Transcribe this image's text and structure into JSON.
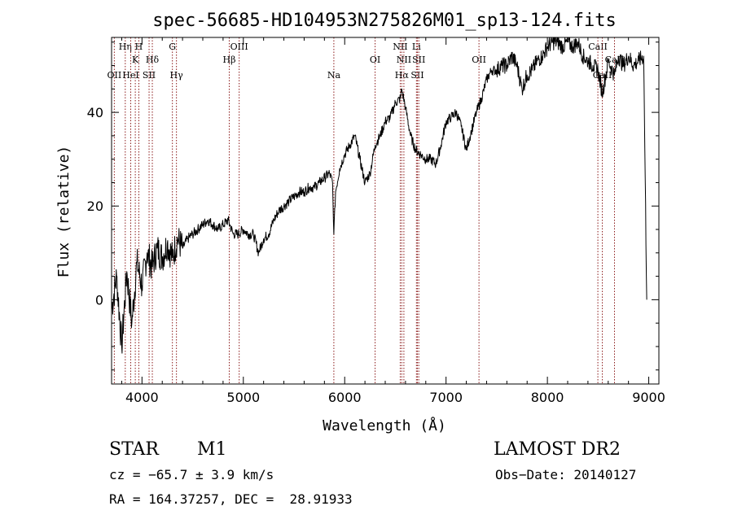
{
  "chart_data": {
    "type": "line",
    "title": "spec-56685-HD104953N275826M01_sp13-124.fits",
    "xlabel": "Wavelength (Å)",
    "ylabel": "Flux (relative)",
    "xlim": [
      3700,
      9100
    ],
    "ylim": [
      -18,
      56
    ],
    "xticks": [
      4000,
      5000,
      6000,
      7000,
      8000,
      9000
    ],
    "yticks": [
      0,
      20,
      40
    ],
    "series": [
      {
        "name": "flux",
        "x": [
          3700,
          3750,
          3800,
          3850,
          3900,
          3950,
          4000,
          4050,
          4100,
          4150,
          4200,
          4250,
          4300,
          4350,
          4400,
          4450,
          4500,
          4550,
          4600,
          4650,
          4700,
          4750,
          4800,
          4850,
          4900,
          4950,
          5000,
          5050,
          5100,
          5150,
          5200,
          5250,
          5300,
          5350,
          5400,
          5450,
          5500,
          5550,
          5600,
          5650,
          5700,
          5750,
          5800,
          5850,
          5880,
          5893,
          5910,
          5950,
          6000,
          6050,
          6100,
          6150,
          6200,
          6250,
          6300,
          6350,
          6400,
          6450,
          6500,
          6550,
          6563,
          6600,
          6650,
          6700,
          6750,
          6800,
          6850,
          6900,
          6950,
          7000,
          7050,
          7100,
          7150,
          7200,
          7250,
          7300,
          7350,
          7400,
          7450,
          7500,
          7550,
          7600,
          7650,
          7700,
          7750,
          7800,
          7850,
          7900,
          7950,
          8000,
          8050,
          8100,
          8150,
          8200,
          8250,
          8300,
          8350,
          8400,
          8450,
          8500,
          8542,
          8600,
          8662,
          8700,
          8750,
          8800,
          8850,
          8900,
          8950,
          8980
        ],
        "y": [
          -2,
          5,
          -10,
          6,
          -5,
          8,
          3,
          10,
          7,
          11,
          9,
          12,
          9,
          13,
          11,
          13,
          14,
          15,
          16,
          17,
          16,
          15,
          16,
          17,
          14,
          14,
          15,
          14,
          14,
          10,
          13,
          14,
          17,
          19,
          20,
          21,
          22,
          23,
          23,
          24,
          24,
          25,
          26,
          27,
          25,
          14,
          23,
          28,
          31,
          33,
          35,
          30,
          25,
          27,
          33,
          35,
          38,
          39,
          42,
          43,
          45,
          41,
          35,
          32,
          31,
          30,
          30,
          29,
          33,
          38,
          39,
          40,
          37,
          32,
          36,
          40,
          43,
          47,
          49,
          49,
          50,
          50,
          52,
          50,
          45,
          48,
          49,
          51,
          52,
          54,
          55,
          55,
          54,
          55,
          54,
          55,
          52,
          51,
          50,
          49,
          44,
          51,
          48,
          52,
          50,
          52,
          50,
          51,
          52,
          0
        ]
      }
    ],
    "lines": [
      {
        "label": "OII",
        "x": 3727,
        "row": 3
      },
      {
        "label": "Hη",
        "x": 3835,
        "row": 1
      },
      {
        "label": "HeI",
        "x": 3889,
        "row": 3
      },
      {
        "label": "K",
        "x": 3934,
        "row": 2
      },
      {
        "label": "H",
        "x": 3969,
        "row": 1
      },
      {
        "label": "SII",
        "x": 4070,
        "row": 3
      },
      {
        "label": "Hδ",
        "x": 4102,
        "row": 2
      },
      {
        "label": "G",
        "x": 4300,
        "row": 1
      },
      {
        "label": "Hγ",
        "x": 4340,
        "row": 3
      },
      {
        "label": "Hβ",
        "x": 4861,
        "row": 2
      },
      {
        "label": "OIII",
        "x": 4959,
        "row": 1
      },
      {
        "label": "Na",
        "x": 5893,
        "row": 3
      },
      {
        "label": "OI",
        "x": 6300,
        "row": 2
      },
      {
        "label": "NII",
        "x": 6548,
        "row": 1
      },
      {
        "label": "Hα",
        "x": 6563,
        "row": 3
      },
      {
        "label": "NII",
        "x": 6584,
        "row": 2
      },
      {
        "label": "Li",
        "x": 6708,
        "row": 1
      },
      {
        "label": "SII",
        "x": 6717,
        "row": 3
      },
      {
        "label": "SII",
        "x": 6731,
        "row": 2
      },
      {
        "label": "OII",
        "x": 7325,
        "row": 2
      },
      {
        "label": "CaII",
        "x": 8498,
        "row": 1
      },
      {
        "label": "CaII",
        "x": 8542,
        "row": 3
      },
      {
        "label": "CaII",
        "x": 8662,
        "row": 2
      }
    ]
  },
  "info": {
    "object_class": "STAR",
    "subclass": "M1",
    "survey": "LAMOST DR2",
    "cz": "cz = −65.7 ± 3.9 km/s",
    "obs_date": "Obs−Date: 20140127",
    "coords": "RA = 164.37257, DEC =  28.91933"
  },
  "colors": {
    "line_marker": "#8b1a1a",
    "spectrum": "#000000"
  }
}
